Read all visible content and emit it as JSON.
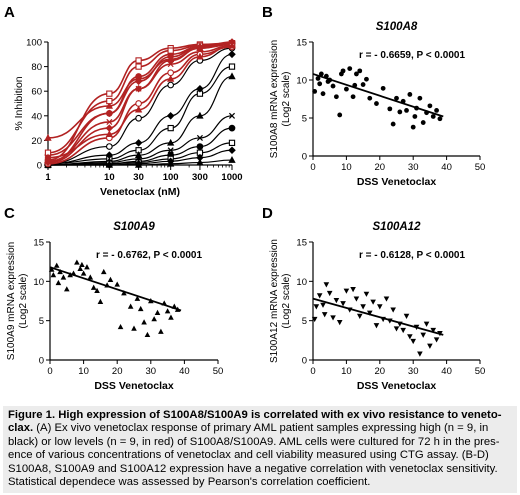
{
  "chart_data": [
    {
      "panel": "A",
      "type": "line",
      "xscale": "log",
      "xlabel": "Venetoclax (nM)",
      "ylabel": "% Inhibition",
      "xticks": [
        "1",
        "10",
        "30",
        "100",
        "300",
        "1000"
      ],
      "xtick_values": [
        1,
        10,
        30,
        100,
        300,
        1000
      ],
      "yticks": [
        "0",
        "20",
        "40",
        "60",
        "80",
        "100"
      ],
      "xlim": [
        1,
        1000
      ],
      "ylim": [
        0,
        100
      ],
      "grid": false,
      "colors": {
        "high_group": "#000000",
        "low_group": "#b22222"
      },
      "series": [
        {
          "group": "low",
          "color": "#b22222",
          "x": [
            1,
            10,
            30,
            100,
            300,
            1000
          ],
          "y": [
            8,
            42,
            72,
            90,
            96,
            98
          ]
        },
        {
          "group": "low",
          "color": "#b22222",
          "x": [
            1,
            10,
            30,
            100,
            300,
            1000
          ],
          "y": [
            4,
            58,
            85,
            95,
            98,
            99
          ]
        },
        {
          "group": "low",
          "color": "#b22222",
          "x": [
            1,
            10,
            30,
            100,
            300,
            1000
          ],
          "y": [
            2,
            30,
            62,
            85,
            95,
            99
          ]
        },
        {
          "group": "low",
          "color": "#b22222",
          "x": [
            1,
            10,
            30,
            100,
            300,
            1000
          ],
          "y": [
            22,
            48,
            70,
            86,
            95,
            98
          ]
        },
        {
          "group": "low",
          "color": "#b22222",
          "x": [
            1,
            10,
            30,
            100,
            300,
            1000
          ],
          "y": [
            3,
            35,
            62,
            82,
            92,
            97
          ]
        },
        {
          "group": "low",
          "color": "#b22222",
          "x": [
            1,
            10,
            30,
            100,
            300,
            1000
          ],
          "y": [
            1,
            22,
            50,
            75,
            90,
            96
          ]
        },
        {
          "group": "low",
          "color": "#b22222",
          "x": [
            1,
            10,
            30,
            100,
            300,
            1000
          ],
          "y": [
            10,
            52,
            80,
            93,
            97,
            99
          ]
        },
        {
          "group": "low",
          "color": "#b22222",
          "x": [
            1,
            10,
            30,
            100,
            300,
            1000
          ],
          "y": [
            2,
            42,
            68,
            88,
            96,
            100
          ]
        },
        {
          "group": "low",
          "color": "#b22222",
          "x": [
            1,
            10,
            30,
            100,
            300,
            1000
          ],
          "y": [
            6,
            25,
            45,
            70,
            88,
            97
          ]
        },
        {
          "group": "high",
          "color": "#000000",
          "x": [
            1,
            10,
            30,
            100,
            300,
            1000
          ],
          "y": [
            1,
            15,
            38,
            65,
            85,
            95
          ]
        },
        {
          "group": "high",
          "color": "#000000",
          "x": [
            1,
            10,
            30,
            100,
            300,
            1000
          ],
          "y": [
            1,
            5,
            12,
            30,
            58,
            80
          ]
        },
        {
          "group": "high",
          "color": "#000000",
          "x": [
            1,
            10,
            30,
            100,
            300,
            1000
          ],
          "y": [
            1,
            8,
            18,
            40,
            62,
            90
          ]
        },
        {
          "group": "high",
          "color": "#000000",
          "x": [
            1,
            10,
            30,
            100,
            300,
            1000
          ],
          "y": [
            0,
            3,
            8,
            18,
            40,
            72
          ]
        },
        {
          "group": "high",
          "color": "#000000",
          "x": [
            1,
            10,
            30,
            100,
            300,
            1000
          ],
          "y": [
            0,
            2,
            5,
            12,
            22,
            40
          ]
        },
        {
          "group": "high",
          "color": "#000000",
          "x": [
            1,
            10,
            30,
            100,
            300,
            1000
          ],
          "y": [
            0,
            1,
            3,
            8,
            15,
            30
          ]
        },
        {
          "group": "high",
          "color": "#000000",
          "x": [
            1,
            10,
            30,
            100,
            300,
            1000
          ],
          "y": [
            0,
            1,
            2,
            5,
            10,
            18
          ]
        },
        {
          "group": "high",
          "color": "#000000",
          "x": [
            1,
            10,
            30,
            100,
            300,
            1000
          ],
          "y": [
            0,
            0,
            1,
            3,
            6,
            12
          ]
        },
        {
          "group": "high",
          "color": "#000000",
          "x": [
            1,
            10,
            30,
            100,
            300,
            1000
          ],
          "y": [
            0,
            0,
            0,
            1,
            2,
            4
          ]
        }
      ]
    },
    {
      "panel": "B",
      "type": "scatter",
      "title": "S100A8",
      "xlabel": "DSS Venetoclax",
      "ylabel": "S100A8 mRNA expression (Log2 scale)",
      "ylabel_lines": [
        "S100A8 mRNA expression",
        "(Log2 scale)"
      ],
      "annotation": "r = - 0.6659,  P < 0.0001",
      "marker": "circle",
      "xticks": [
        "0",
        "10",
        "20",
        "30",
        "40",
        "50"
      ],
      "yticks": [
        "0",
        "5",
        "10",
        "15"
      ],
      "xlim": [
        0,
        50
      ],
      "ylim": [
        0,
        15
      ],
      "grid": false,
      "fit": {
        "x": [
          0,
          39
        ],
        "y": [
          10.8,
          5.2
        ]
      },
      "x": [
        0.5,
        1.5,
        2,
        2.5,
        3,
        4,
        4.5,
        5,
        6,
        7,
        8,
        8.5,
        9,
        10,
        11,
        12,
        12.5,
        13,
        14,
        15,
        16,
        17,
        19,
        21,
        23,
        24,
        25,
        26,
        27,
        28,
        29,
        30,
        30.5,
        31,
        32,
        33,
        34,
        35,
        36,
        37,
        38
      ],
      "y": [
        8.5,
        10.2,
        9.5,
        10.8,
        8.2,
        10.5,
        9.8,
        10.0,
        9.2,
        7.8,
        5.4,
        10.8,
        11.2,
        8.8,
        11.5,
        7.8,
        9.3,
        10.8,
        11.2,
        9.4,
        10.1,
        7.6,
        6.9,
        8.9,
        6.2,
        4.2,
        7.6,
        5.8,
        7.2,
        6.0,
        8.1,
        3.8,
        5.2,
        6.3,
        7.6,
        4.4,
        5.7,
        6.6,
        5.2,
        6.0,
        4.9
      ]
    },
    {
      "panel": "C",
      "type": "scatter",
      "title": "S100A9",
      "xlabel": "DSS Venetoclax",
      "ylabel": "S100A9 mRNA expression (Log2 scale)",
      "ylabel_lines": [
        "S100A9 mRNA expression",
        "(Log2 scale)"
      ],
      "annotation": "r = - 0.6762,  P < 0.0001",
      "marker": "triangle-up",
      "xticks": [
        "0",
        "10",
        "20",
        "30",
        "40",
        "50"
      ],
      "yticks": [
        "0",
        "5",
        "10",
        "15"
      ],
      "xlim": [
        0,
        50
      ],
      "ylim": [
        0,
        15
      ],
      "grid": false,
      "fit": {
        "x": [
          0,
          39
        ],
        "y": [
          11.8,
          6.3
        ]
      },
      "x": [
        0.5,
        1,
        2,
        2.5,
        3,
        4,
        5,
        6,
        7,
        8,
        9,
        9.5,
        10,
        11,
        12,
        13,
        14,
        15,
        16,
        17,
        18,
        20,
        21,
        22,
        24,
        25,
        26,
        27,
        28,
        29,
        30,
        31,
        32,
        33,
        34,
        35,
        36,
        37,
        38
      ],
      "y": [
        11.5,
        10.8,
        12.0,
        9.8,
        11.2,
        10.5,
        9.0,
        10.8,
        11.0,
        12.4,
        11.6,
        12.1,
        11.0,
        11.8,
        10.5,
        9.2,
        8.8,
        7.4,
        11.2,
        9.5,
        10.2,
        9.6,
        4.2,
        8.5,
        6.8,
        4.0,
        7.8,
        6.5,
        4.8,
        3.2,
        7.5,
        5.2,
        6.0,
        3.6,
        7.2,
        6.2,
        5.4,
        6.8,
        6.4
      ]
    },
    {
      "panel": "D",
      "type": "scatter",
      "title": "S100A12",
      "xlabel": "DSS Venetoclax",
      "ylabel": "S100A12 mRNA expression (Log2 scale)",
      "ylabel_lines": [
        "S100A12 mRNA expression",
        "(Log2 scale)"
      ],
      "annotation": "r = - 0.6128,  P < 0.0001",
      "marker": "triangle-down",
      "xticks": [
        "0",
        "10",
        "20",
        "30",
        "40",
        "50"
      ],
      "yticks": [
        "0",
        "5",
        "10",
        "15"
      ],
      "xlim": [
        0,
        50
      ],
      "ylim": [
        0,
        15
      ],
      "grid": false,
      "fit": {
        "x": [
          0,
          39
        ],
        "y": [
          7.8,
          3.2
        ]
      },
      "x": [
        0.5,
        1,
        2,
        3,
        3.5,
        4,
        5,
        6,
        7,
        8,
        9,
        10,
        11,
        12,
        13,
        14,
        15,
        16,
        17,
        18,
        19,
        20,
        21,
        22,
        23,
        24,
        25,
        26,
        27,
        28,
        29,
        30,
        31,
        32,
        33,
        34,
        35,
        36,
        37,
        38
      ],
      "y": [
        5.2,
        6.8,
        8.2,
        7.0,
        5.8,
        9.6,
        8.5,
        5.4,
        7.6,
        4.8,
        7.2,
        8.8,
        6.4,
        9.0,
        7.8,
        5.6,
        6.8,
        8.4,
        6.0,
        7.4,
        4.4,
        6.8,
        5.2,
        7.8,
        5.0,
        6.4,
        4.0,
        4.6,
        3.8,
        5.6,
        3.0,
        2.4,
        4.2,
        0.8,
        3.2,
        4.6,
        1.8,
        3.8,
        2.6,
        3.4
      ]
    }
  ],
  "caption": {
    "title": "Figure 1. High expression of S100A8/S100A9 is correlated with ex vivo resistance to veneto- clax.",
    "body": "(A) Ex vivo venetoclax response of primary AML patient samples expressing high (n = 9, in black) or low levels (n = 9, in red) of S100A8/S100A9. AML cells were cultured for 72 h in the pres- ence of various concentrations of venetoclax and cell viability measured using CTG assay. (B-D) S100A8, S100A9 and S100A12 expression have a negative correlation with venetoclax sensitivity. Statistical dependece was assessed by Pearson's correlation coefficient."
  }
}
